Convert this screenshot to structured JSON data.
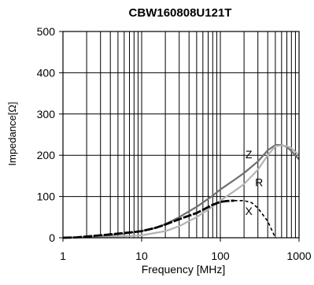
{
  "chart_data": {
    "type": "line",
    "title": "CBW160808U121T",
    "xlabel": "Frequency [MHz]",
    "ylabel": "Impedance[Ω]",
    "x_scale": "log",
    "xlim": [
      1,
      1000
    ],
    "ylim": [
      0,
      500
    ],
    "x_ticks": [
      {
        "value": 1,
        "label": "1"
      },
      {
        "value": 10,
        "label": "10"
      },
      {
        "value": 100,
        "label": "100"
      },
      {
        "value": 1000,
        "label": "1000"
      }
    ],
    "y_ticks": [
      {
        "value": 0,
        "label": "0"
      },
      {
        "value": 100,
        "label": "100"
      },
      {
        "value": 200,
        "label": "200"
      },
      {
        "value": 300,
        "label": "300"
      },
      {
        "value": 400,
        "label": "400"
      },
      {
        "value": 500,
        "label": "500"
      }
    ],
    "grid": true,
    "series": [
      {
        "name": "Z",
        "color": "#6e6e6e",
        "style": "solid",
        "points": [
          [
            1,
            0
          ],
          [
            2,
            2
          ],
          [
            3,
            4
          ],
          [
            5,
            8
          ],
          [
            8,
            13
          ],
          [
            10,
            16
          ],
          [
            15,
            24
          ],
          [
            20,
            33
          ],
          [
            30,
            50
          ],
          [
            50,
            75
          ],
          [
            80,
            102
          ],
          [
            100,
            117
          ],
          [
            150,
            140
          ],
          [
            200,
            157
          ],
          [
            300,
            185
          ],
          [
            400,
            212
          ],
          [
            500,
            225
          ],
          [
            600,
            225
          ],
          [
            700,
            220
          ],
          [
            800,
            210
          ],
          [
            1000,
            190
          ]
        ]
      },
      {
        "name": "R",
        "color": "#b3b3b3",
        "style": "solid",
        "points": [
          [
            1,
            0
          ],
          [
            3,
            1
          ],
          [
            5,
            3
          ],
          [
            10,
            6
          ],
          [
            20,
            16
          ],
          [
            30,
            28
          ],
          [
            50,
            50
          ],
          [
            80,
            76
          ],
          [
            100,
            90
          ],
          [
            150,
            113
          ],
          [
            200,
            130
          ],
          [
            300,
            165
          ],
          [
            400,
            200
          ],
          [
            500,
            222
          ],
          [
            600,
            224
          ],
          [
            700,
            222
          ],
          [
            800,
            217
          ],
          [
            1000,
            200
          ]
        ]
      },
      {
        "name": "X",
        "color": "#000000",
        "style": "solid-then-dashed",
        "points": [
          [
            1,
            0
          ],
          [
            1.5,
            1
          ],
          [
            2,
            3
          ],
          [
            3,
            6
          ],
          [
            5,
            10
          ],
          [
            8,
            14
          ],
          [
            10,
            16
          ],
          [
            15,
            24
          ],
          [
            20,
            32
          ],
          [
            30,
            45
          ],
          [
            50,
            60
          ],
          [
            80,
            80
          ],
          [
            100,
            87
          ],
          [
            120,
            89
          ],
          [
            150,
            90
          ],
          [
            200,
            90
          ],
          [
            250,
            85
          ],
          [
            300,
            72
          ],
          [
            400,
            40
          ],
          [
            500,
            0
          ]
        ]
      }
    ],
    "annotations": [
      {
        "text": "Z",
        "x": 230,
        "y": 193
      },
      {
        "text": "R",
        "x": 310,
        "y": 125
      },
      {
        "text": "X",
        "x": 230,
        "y": 55
      }
    ]
  }
}
